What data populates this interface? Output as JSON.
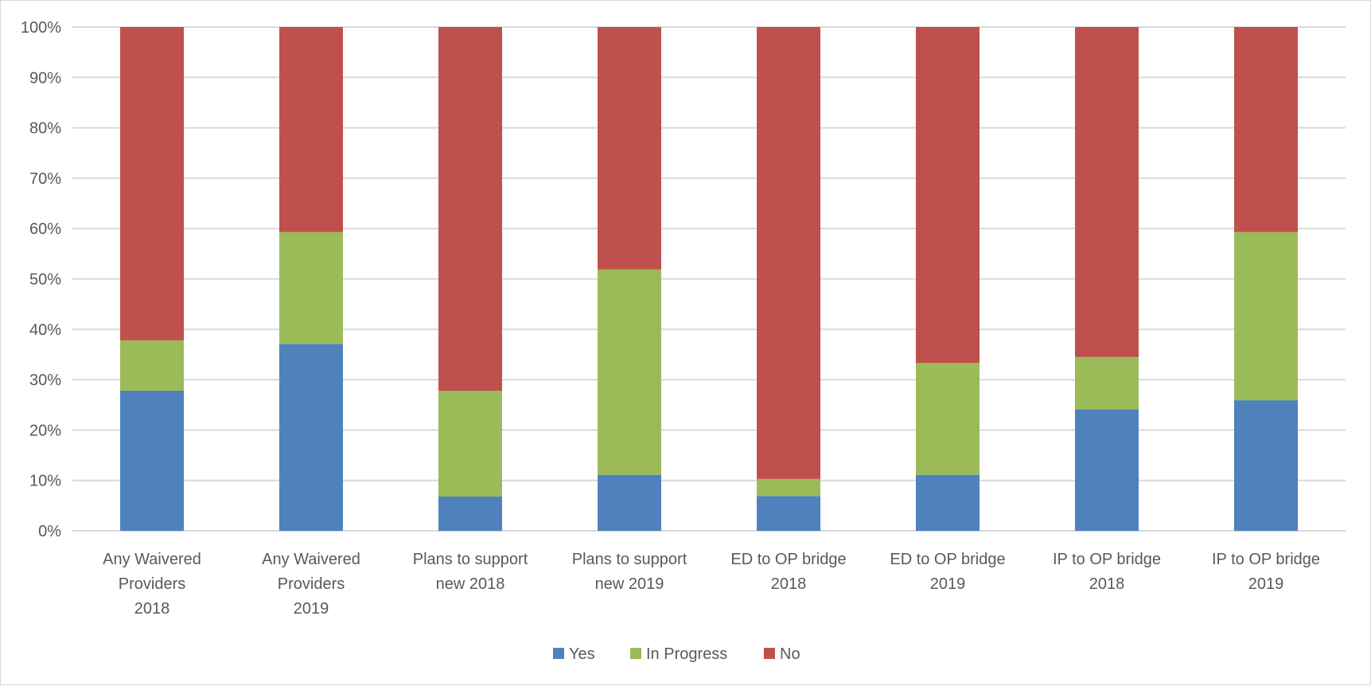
{
  "chart_data": {
    "type": "bar",
    "stacked": true,
    "percent_stacked": true,
    "categories": [
      [
        "Any Waivered",
        "Providers",
        "2018"
      ],
      [
        "Any Waivered",
        "Providers",
        "2019"
      ],
      [
        "Plans to support",
        "new 2018"
      ],
      [
        "Plans to support",
        "new 2019"
      ],
      [
        "ED to OP bridge",
        "2018"
      ],
      [
        "ED to OP bridge",
        "2019"
      ],
      [
        "IP to OP bridge",
        "2018"
      ],
      [
        "IP to OP bridge",
        "2019"
      ]
    ],
    "series": [
      {
        "name": "Yes",
        "color": "#4f81bd",
        "values": [
          27.8,
          37.1,
          6.8,
          11.1,
          6.9,
          11.1,
          24.1,
          25.9
        ]
      },
      {
        "name": "In Progress",
        "color": "#9bbb59",
        "values": [
          10.0,
          22.2,
          21.0,
          40.8,
          3.4,
          22.2,
          10.4,
          33.4
        ]
      },
      {
        "name": "No",
        "color": "#c0504d",
        "values": [
          62.2,
          40.7,
          72.2,
          48.1,
          89.7,
          66.7,
          65.5,
          40.7
        ]
      }
    ],
    "ylim": [
      0,
      100
    ],
    "yticks": [
      "0%",
      "10%",
      "20%",
      "30%",
      "40%",
      "50%",
      "60%",
      "70%",
      "80%",
      "90%",
      "100%"
    ],
    "grid": true,
    "legend": "bottom",
    "title": "",
    "xlabel": "",
    "ylabel": ""
  }
}
